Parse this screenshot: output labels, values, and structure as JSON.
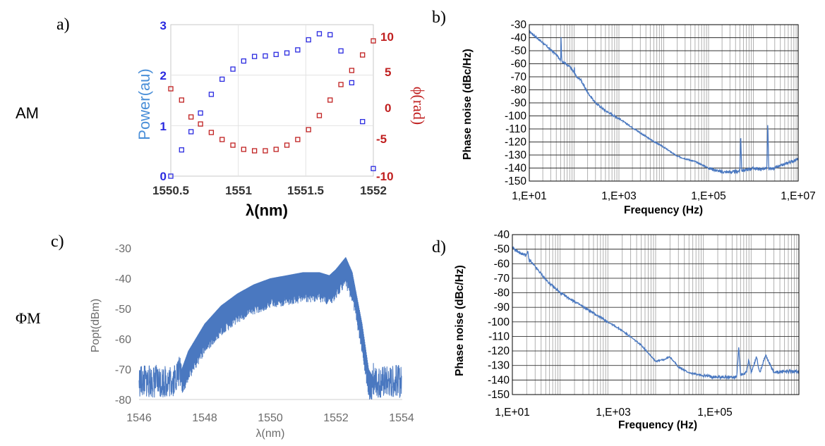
{
  "row_labels": {
    "am": "AM",
    "pm": "ΦM"
  },
  "panel_letters": {
    "a": "a)",
    "b": "b)",
    "c": "c)",
    "d": "d)"
  },
  "colors": {
    "blue": "#2a2ae0",
    "red": "#c02020",
    "series": "#4a78c0",
    "grid": "#a0a0a0",
    "gray_text": "#6b6b6b"
  },
  "chart_data": [
    {
      "id": "a",
      "type": "scatter",
      "xlabel": "λ(nm)",
      "ylabel": "Power(au)",
      "y2label": "ϕ(rad)",
      "xlim": [
        1550.5,
        1552
      ],
      "ylim": [
        0,
        3
      ],
      "y2lim": [
        -10,
        10
      ],
      "xticks": [
        "1550.5",
        "1551",
        "1551.5",
        "1552"
      ],
      "yticks": [
        "0",
        "1",
        "2",
        "3"
      ],
      "y2ticks": [
        "-10",
        "-5",
        "0",
        "5",
        "10"
      ],
      "series": [
        {
          "axis": "left",
          "marker": "open-square",
          "color": "#2a2ae0",
          "x": [
            1550.5,
            1550.58,
            1550.65,
            1550.72,
            1550.8,
            1550.88,
            1550.96,
            1551.04,
            1551.12,
            1551.2,
            1551.28,
            1551.36,
            1551.44,
            1551.52,
            1551.6,
            1551.68,
            1551.76,
            1551.84,
            1551.92,
            1552.0
          ],
          "y": [
            0.0,
            0.52,
            0.88,
            1.25,
            1.62,
            1.92,
            2.12,
            2.28,
            2.37,
            2.38,
            2.41,
            2.44,
            2.5,
            2.7,
            2.82,
            2.8,
            2.48,
            1.85,
            1.08,
            0.15
          ]
        },
        {
          "axis": "right",
          "marker": "open-square",
          "color": "#c02020",
          "x": [
            1550.5,
            1550.58,
            1550.65,
            1550.72,
            1550.8,
            1550.88,
            1550.96,
            1551.04,
            1551.12,
            1551.2,
            1551.28,
            1551.36,
            1551.44,
            1551.52,
            1551.6,
            1551.68,
            1551.76,
            1551.84,
            1551.92,
            1552.0
          ],
          "y": [
            2.4,
            0.8,
            -1.6,
            -2.6,
            -3.8,
            -4.8,
            -5.6,
            -6.2,
            -6.4,
            -6.4,
            -6.2,
            -5.6,
            -4.8,
            -3.4,
            -1.4,
            0.8,
            3.0,
            5.0,
            7.2,
            9.2
          ]
        }
      ]
    },
    {
      "id": "b",
      "type": "line",
      "xscale": "log",
      "xlabel": "Frequency (Hz)",
      "ylabel": "Phase noise (dBc/Hz)",
      "xlim": [
        10,
        10000000
      ],
      "ylim": [
        -150,
        -30
      ],
      "xticks": [
        "1,E+01",
        "1,E+03",
        "1,E+05",
        "1,E+07"
      ],
      "yticks": [
        "-30",
        "-40",
        "-50",
        "-60",
        "-70",
        "-80",
        "-90",
        "-100",
        "-110",
        "-120",
        "-130",
        "-140",
        "-150"
      ],
      "grid": "minor-x, major-y",
      "series": [
        {
          "color": "#4a78c0",
          "x": [
            10,
            20,
            40,
            50,
            51,
            53,
            80,
            100,
            101,
            103,
            120,
            140,
            160,
            200,
            300,
            500,
            1000,
            2000,
            5000,
            10000,
            20000,
            50000,
            100000,
            200000,
            400000,
            500000,
            520000,
            550000,
            800000,
            1000000,
            1500000,
            2000000,
            2100000,
            2200000,
            3000000,
            5000000,
            10000000
          ],
          "y": [
            -35,
            -44,
            -53,
            -57,
            -38,
            -58,
            -62,
            -67,
            -61,
            -68,
            -71,
            -72,
            -76,
            -82,
            -90,
            -96,
            -102,
            -109,
            -118,
            -124,
            -131,
            -135,
            -140,
            -143,
            -143,
            -142,
            -113,
            -142,
            -141,
            -140,
            -141,
            -140,
            -104,
            -141,
            -140,
            -137,
            -133
          ]
        }
      ]
    },
    {
      "id": "c",
      "type": "line",
      "xlabel": "λ(nm)",
      "ylabel": "Popt(dBm)",
      "xlim": [
        1546,
        1554
      ],
      "ylim": [
        -80,
        -30
      ],
      "xticks": [
        "1546",
        "1548",
        "1550",
        "1552",
        "1554"
      ],
      "yticks": [
        "-30",
        "-40",
        "-50",
        "-60",
        "-70",
        "-80"
      ],
      "series": [
        {
          "color": "#4a78c0",
          "x": [
            1546.0,
            1547.0,
            1547.3,
            1547.5,
            1548.0,
            1548.5,
            1549.0,
            1549.5,
            1550.0,
            1550.5,
            1551.0,
            1551.5,
            1551.8,
            1552.0,
            1552.3,
            1552.5,
            1552.8,
            1553.0,
            1553.2,
            1554.0
          ],
          "y": [
            -74,
            -74,
            -70,
            -64,
            -55,
            -49,
            -45,
            -42,
            -40,
            -39,
            -38,
            -38,
            -39,
            -37,
            -33,
            -38,
            -55,
            -70,
            -74,
            -74
          ]
        }
      ]
    },
    {
      "id": "d",
      "type": "line",
      "xscale": "log",
      "xlabel": "Frequency (Hz)",
      "ylabel": "Phase noise (dBc/Hz)",
      "xlim": [
        10,
        10000000
      ],
      "ylim": [
        -150,
        -40
      ],
      "xticks": [
        "1,E+01",
        "1,E+03",
        "1,E+05"
      ],
      "yticks": [
        "-40",
        "-50",
        "-60",
        "-70",
        "-80",
        "-90",
        "-100",
        "-110",
        "-120",
        "-130",
        "-140",
        "-150"
      ],
      "grid": "minor-x, major-y",
      "series": [
        {
          "color": "#4a78c0",
          "x": [
            10,
            15,
            20,
            21,
            22,
            30,
            50,
            100,
            200,
            500,
            1000,
            2000,
            5000,
            10000,
            15000,
            20000,
            30000,
            50000,
            100000,
            200000,
            500000,
            550000,
            600000,
            800000,
            900000,
            1000000,
            1300000,
            1500000,
            2000000,
            3000000,
            5000000,
            10000000
          ],
          "y": [
            -49,
            -53,
            -54,
            -51,
            -57,
            -62,
            -71,
            -80,
            -86,
            -94,
            -100,
            -106,
            -116,
            -127,
            -126,
            -124,
            -131,
            -135,
            -137,
            -138,
            -138,
            -117,
            -136,
            -135,
            -126,
            -135,
            -124,
            -135,
            -123,
            -135,
            -134,
            -134
          ]
        }
      ]
    }
  ]
}
